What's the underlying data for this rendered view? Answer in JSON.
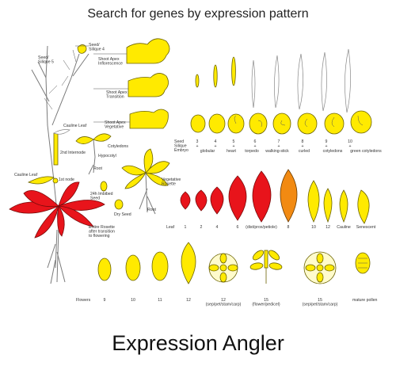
{
  "header": {
    "title": "Search for genes by expression pattern"
  },
  "footer": {
    "app_name": "Expression Angler"
  },
  "colors": {
    "yellow": "#ffea00",
    "red": "#e8141b",
    "orange": "#f28a12",
    "white": "#ffffff"
  },
  "labels": {
    "seed_silique_4": "Seed/\nSilique 4",
    "seed_silique_5": "Seed/\nSilique 5",
    "shoot_apex_inflorescence": "Shoot Apex\nInflorescence",
    "shoot_apex_transition": "Shoot Apex\nTransition",
    "shoot_apex_vegetative": "Shoot Apex\nVegetative",
    "cauline_leaf_top": "Cauline Leaf",
    "internode_2nd": "2nd Internode",
    "cauline_leaf_left": "Cauline Leaf",
    "first_node": "1st node",
    "cotyledons": "Cotyledons",
    "hypocotyl": "Hypocotyl",
    "root_seedling": "Root",
    "imbibed_seed": "24h Imbibed\nSeed",
    "dry_seed": "Dry Seed",
    "veg_rosette": "Vegetative\nRosette",
    "root_plant": "Root",
    "entire_rosette": "Entire Rosette\nafter transition\nto flowering",
    "seed_row_labels": "Seed\nSilique\nEmbryo",
    "leaf_row_label": "Leaf",
    "flowers_row_label": "Flowers",
    "mature_pollen": "mature pollen"
  },
  "silique_stages": [
    "3",
    "4",
    "5",
    "6",
    "7",
    "8",
    "9",
    "10"
  ],
  "silique_marks": [
    "+",
    "+",
    "+",
    "+",
    "+",
    "+",
    "+",
    "+"
  ],
  "embryo_stages": [
    "globular",
    "heart",
    "torpedo",
    "walking-stick",
    "curled",
    "cotyledons",
    "green cotyledons"
  ],
  "leaf_stages": [
    "1",
    "2",
    "4",
    "6",
    "(dist/prox/petiole)",
    "8",
    "10",
    "12",
    "Cauline",
    "Senescent"
  ],
  "flower_stages": [
    "9",
    "10",
    "11",
    "12",
    "12\n(sep/pet/stam/carp)",
    "15\n(flower/pedicel)",
    "15\n(sep/pet/stam/carp)"
  ]
}
